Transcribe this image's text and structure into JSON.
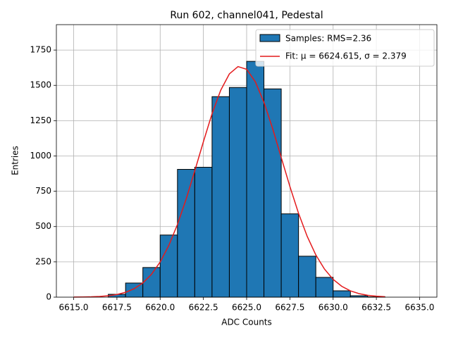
{
  "chart_data": {
    "type": "histogram",
    "title": "Run 602, channel041, Pedestal",
    "x_label": "ADC Counts",
    "y_label": "Entries",
    "bins": [
      6615,
      6616,
      6617,
      6618,
      6619,
      6620,
      6621,
      6622,
      6623,
      6624,
      6625,
      6626,
      6627,
      6628,
      6629,
      6630,
      6631,
      6632,
      6633,
      6634,
      6635
    ],
    "values": [
      0,
      0,
      20,
      100,
      210,
      440,
      905,
      920,
      1420,
      1485,
      1670,
      1475,
      590,
      290,
      140,
      45,
      10,
      2,
      0,
      0
    ],
    "name": "Samples: RMS=2.36",
    "color": "#1f77b4",
    "fit": {
      "name": "Fit: μ = 6624.615, σ = 2.379",
      "color": "#e41a1c",
      "x": [
        6615,
        6615.5,
        6616,
        6616.5,
        6617,
        6617.5,
        6618,
        6618.5,
        6619,
        6619.5,
        6620,
        6620.5,
        6621,
        6621.5,
        6622,
        6622.5,
        6623,
        6623.5,
        6624,
        6624.5,
        6625,
        6625.5,
        6626,
        6626.5,
        6627,
        6627.5,
        6628,
        6628.5,
        6629,
        6629.5,
        6630,
        6630.5,
        6631,
        6631.5,
        6632,
        6632.5,
        6633
      ],
      "values": [
        0.5,
        1.1,
        2.3,
        4.9,
        9.7,
        18.7,
        34.2,
        60.1,
        100.8,
        162.2,
        249,
        366,
        515,
        694,
        894,
        1101,
        1299,
        1465,
        1581,
        1633,
        1614,
        1526,
        1380,
        1195,
        989,
        784,
        594,
        431,
        299,
        199,
        126,
        76.7,
        44.6,
        24.8,
        13.2,
        6.7,
        3.3
      ]
    },
    "xlim": [
      6614,
      6636
    ],
    "ylim": [
      0,
      1930
    ],
    "xticks": [
      {
        "value": 6615,
        "label": "6615.0"
      },
      {
        "value": 6617.5,
        "label": "6617.5"
      },
      {
        "value": 6620,
        "label": "6620.0"
      },
      {
        "value": 6622.5,
        "label": "6622.5"
      },
      {
        "value": 6625,
        "label": "6625.0"
      },
      {
        "value": 6627.5,
        "label": "6627.5"
      },
      {
        "value": 6630,
        "label": "6630.0"
      },
      {
        "value": 6632.5,
        "label": "6632.5"
      },
      {
        "value": 6635,
        "label": "6635.0"
      }
    ],
    "yticks": [
      0,
      250,
      500,
      750,
      1000,
      1250,
      1500,
      1750
    ],
    "grid": true,
    "legend": "upper right"
  }
}
